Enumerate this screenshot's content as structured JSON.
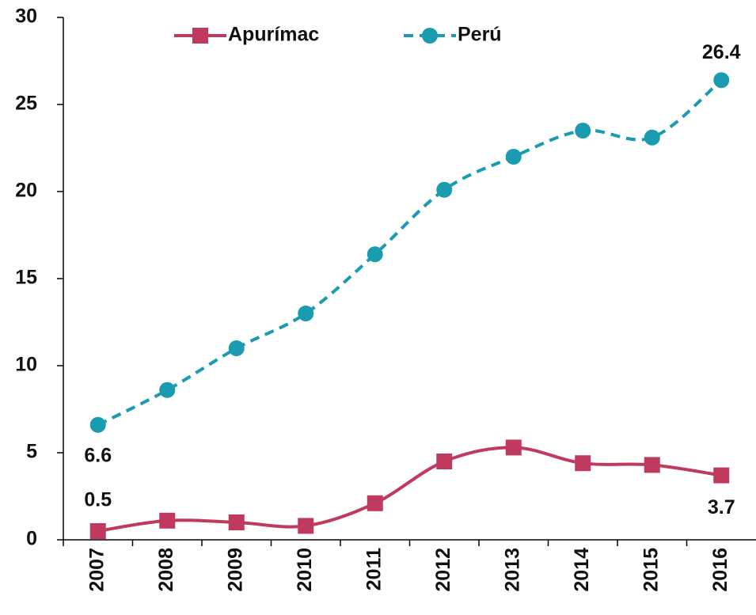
{
  "chart_data": {
    "type": "line",
    "smooth": true,
    "categories": [
      "2007",
      "2008",
      "2009",
      "2010",
      "2011",
      "2012",
      "2013",
      "2014",
      "2015",
      "2016"
    ],
    "series": [
      {
        "name": "Apurímac",
        "color": "#c0395e",
        "marker": "square",
        "dashed": false,
        "values": [
          0.5,
          1.1,
          1.0,
          0.8,
          2.1,
          4.5,
          5.3,
          4.4,
          4.3,
          3.7
        ]
      },
      {
        "name": "Perú",
        "color": "#1a9bb0",
        "marker": "circle",
        "dashed": true,
        "values": [
          6.6,
          8.6,
          11.0,
          13.0,
          16.4,
          20.1,
          22.0,
          23.5,
          23.1,
          26.4
        ]
      }
    ],
    "ylim": [
      0,
      30
    ],
    "yticks": [
      0,
      5,
      10,
      15,
      20,
      25,
      30
    ],
    "grid": false,
    "legend": "top"
  }
}
